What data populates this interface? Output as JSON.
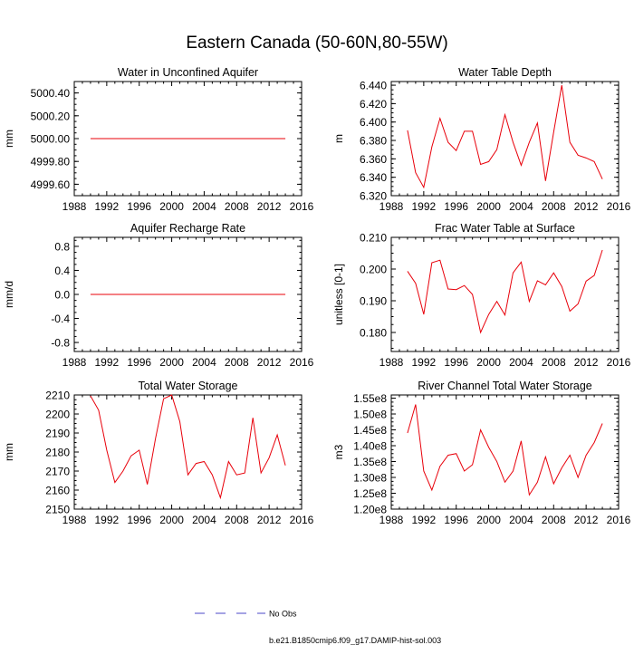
{
  "title": "Eastern Canada (50-60N,80-55W)",
  "colors": {
    "series": "#e8000a",
    "noobs": "#4b47c8",
    "axis": "#000000"
  },
  "legend": {
    "noobs_label": "No Obs",
    "model_label": "b.e21.B1850cmip6.f09_g17.DAMIP-hist-sol.003"
  },
  "chart_data": [
    {
      "type": "line",
      "title": "Water in Unconfined Aquifer",
      "ylabel": "mm",
      "xlim": [
        1988,
        2016
      ],
      "ylim": [
        4999.5,
        5000.5
      ],
      "xticks": [
        1988,
        1992,
        1996,
        2000,
        2004,
        2008,
        2012,
        2016
      ],
      "xtick_labels": [
        "1988",
        "1992",
        "1996",
        "2000",
        "2004",
        "2008",
        "2012",
        "2016"
      ],
      "yticks": [
        4999.6,
        4999.8,
        5000.0,
        5000.2,
        5000.4
      ],
      "ytick_labels": [
        "4999.60",
        "4999.80",
        "5000.00",
        "5000.20",
        "5000.40"
      ],
      "series": [
        {
          "x": [
            1990,
            2014
          ],
          "values": [
            5000.0,
            5000.0
          ]
        }
      ]
    },
    {
      "type": "line",
      "title": "Water Table Depth",
      "ylabel": "m",
      "xlim": [
        1988,
        2016
      ],
      "ylim": [
        6.32,
        6.444
      ],
      "xticks": [
        1988,
        1992,
        1996,
        2000,
        2004,
        2008,
        2012,
        2016
      ],
      "xtick_labels": [
        "1988",
        "1992",
        "1996",
        "2000",
        "2004",
        "2008",
        "2012",
        "2016"
      ],
      "yticks": [
        6.32,
        6.34,
        6.36,
        6.38,
        6.4,
        6.42,
        6.44
      ],
      "ytick_labels": [
        "6.320",
        "6.340",
        "6.360",
        "6.380",
        "6.400",
        "6.420",
        "6.440"
      ],
      "series": [
        {
          "x": [
            1990,
            1991,
            1992,
            1993,
            1994,
            1995,
            1996,
            1997,
            1998,
            1999,
            2000,
            2001,
            2002,
            2003,
            2004,
            2005,
            2006,
            2007,
            2008,
            2009,
            2010,
            2011,
            2012,
            2013,
            2014
          ],
          "values": [
            6.391,
            6.345,
            6.329,
            6.373,
            6.404,
            6.378,
            6.369,
            6.39,
            6.39,
            6.354,
            6.357,
            6.37,
            6.408,
            6.378,
            6.353,
            6.378,
            6.399,
            6.336,
            6.389,
            6.44,
            6.378,
            6.364,
            6.361,
            6.357,
            6.338
          ]
        }
      ]
    },
    {
      "type": "line",
      "title": "Aquifer Recharge Rate",
      "ylabel": "mm/d",
      "xlim": [
        1988,
        2016
      ],
      "ylim": [
        -0.95,
        0.95
      ],
      "xticks": [
        1988,
        1992,
        1996,
        2000,
        2004,
        2008,
        2012,
        2016
      ],
      "xtick_labels": [
        "1988",
        "1992",
        "1996",
        "2000",
        "2004",
        "2008",
        "2012",
        "2016"
      ],
      "yticks": [
        -0.8,
        -0.4,
        0.0,
        0.4,
        0.8
      ],
      "ytick_labels": [
        "-0.8",
        "-0.4",
        "0.0",
        "0.4",
        "0.8"
      ],
      "series": [
        {
          "x": [
            1990,
            2014
          ],
          "values": [
            0.0,
            0.0
          ]
        }
      ]
    },
    {
      "type": "line",
      "title": "Frac Water Table at Surface",
      "ylabel": "unitless [0-1]",
      "xlim": [
        1988,
        2016
      ],
      "ylim": [
        0.174,
        0.21
      ],
      "xticks": [
        1988,
        1992,
        1996,
        2000,
        2004,
        2008,
        2012,
        2016
      ],
      "xtick_labels": [
        "1988",
        "1992",
        "1996",
        "2000",
        "2004",
        "2008",
        "2012",
        "2016"
      ],
      "yticks": [
        0.18,
        0.19,
        0.2,
        0.21
      ],
      "ytick_labels": [
        "0.180",
        "0.190",
        "0.200",
        "0.210"
      ],
      "series": [
        {
          "x": [
            1990,
            1991,
            1992,
            1993,
            1994,
            1995,
            1996,
            1997,
            1998,
            1999,
            2000,
            2001,
            2002,
            2003,
            2004,
            2005,
            2006,
            2007,
            2008,
            2009,
            2010,
            2011,
            2012,
            2013,
            2014
          ],
          "values": [
            0.1993,
            0.1955,
            0.1857,
            0.202,
            0.2028,
            0.1937,
            0.1935,
            0.1948,
            0.192,
            0.18,
            0.1857,
            0.1898,
            0.1855,
            0.1988,
            0.2022,
            0.1898,
            0.1963,
            0.195,
            0.1988,
            0.1945,
            0.1867,
            0.189,
            0.1962,
            0.198,
            0.206
          ]
        }
      ]
    },
    {
      "type": "line",
      "title": "Total Water Storage",
      "ylabel": "mm",
      "xlim": [
        1988,
        2016
      ],
      "ylim": [
        2150,
        2210
      ],
      "xticks": [
        1988,
        1992,
        1996,
        2000,
        2004,
        2008,
        2012,
        2016
      ],
      "xtick_labels": [
        "1988",
        "1992",
        "1996",
        "2000",
        "2004",
        "2008",
        "2012",
        "2016"
      ],
      "yticks": [
        2150,
        2160,
        2170,
        2180,
        2190,
        2200,
        2210
      ],
      "ytick_labels": [
        "2150",
        "2160",
        "2170",
        "2180",
        "2190",
        "2200",
        "2210"
      ],
      "series": [
        {
          "x": [
            1990,
            1991,
            1992,
            1993,
            1994,
            1995,
            1996,
            1997,
            1998,
            1999,
            2000,
            2001,
            2002,
            2003,
            2004,
            2005,
            2006,
            2007,
            2008,
            2009,
            2010,
            2011,
            2012,
            2013,
            2014
          ],
          "values": [
            2209.5,
            2202,
            2181,
            2164,
            2170,
            2178,
            2181,
            2163,
            2187,
            2208,
            2210,
            2196,
            2168,
            2174,
            2175,
            2168,
            2156,
            2175,
            2168,
            2169,
            2198,
            2169,
            2177,
            2189,
            2173
          ]
        }
      ]
    },
    {
      "type": "line",
      "title": "River Channel Total Water Storage",
      "ylabel": "m3",
      "xlim": [
        1988,
        2016
      ],
      "ylim": [
        120000000.0,
        156000000.0
      ],
      "xticks": [
        1988,
        1992,
        1996,
        2000,
        2004,
        2008,
        2012,
        2016
      ],
      "xtick_labels": [
        "1988",
        "1992",
        "1996",
        "2000",
        "2004",
        "2008",
        "2012",
        "2016"
      ],
      "yticks": [
        120000000.0,
        125000000.0,
        130000000.0,
        135000000.0,
        140000000.0,
        145000000.0,
        150000000.0,
        155000000.0
      ],
      "ytick_labels": [
        "1.20e8",
        "1.25e8",
        "1.30e8",
        "1.35e8",
        "1.40e8",
        "1.45e8",
        "1.50e8",
        "1.55e8"
      ],
      "series": [
        {
          "x": [
            1990,
            1991,
            1992,
            1993,
            1994,
            1995,
            1996,
            1997,
            1998,
            1999,
            2000,
            2001,
            2002,
            2003,
            2004,
            2005,
            2006,
            2007,
            2008,
            2009,
            2010,
            2011,
            2012,
            2013,
            2014
          ],
          "values": [
            144000000.0,
            153000000.0,
            132000000.0,
            126000000.0,
            133500000.0,
            137000000.0,
            137500000.0,
            132000000.0,
            134000000.0,
            145000000.0,
            139500000.0,
            135000000.0,
            128500000.0,
            132000000.0,
            141500000.0,
            124500000.0,
            128500000.0,
            136500000.0,
            128000000.0,
            133000000.0,
            137000000.0,
            130000000.0,
            137000000.0,
            141000000.0,
            147000000.0
          ]
        }
      ]
    }
  ]
}
